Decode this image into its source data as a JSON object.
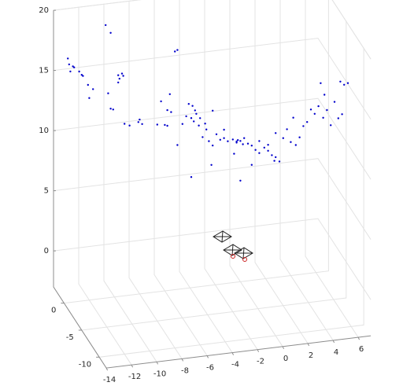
{
  "chart_data": {
    "type": "scatter3d",
    "color": "#0000cc",
    "grid": true,
    "xlim": [
      -14,
      7
    ],
    "ylim": [
      -12,
      3
    ],
    "zlim": [
      -3,
      20
    ],
    "xticks": [
      -14,
      -12,
      -10,
      -8,
      -6,
      -4,
      -2,
      0,
      2,
      4,
      6
    ],
    "yticks": [
      -10,
      -5,
      0
    ],
    "zticks": [
      0,
      5,
      10,
      15,
      20
    ],
    "x": [
      -13.7,
      -13.6,
      -13.3,
      -13.2,
      -13.5,
      -12.8,
      -12.6,
      -12.5,
      -12.1,
      -11.7,
      -12.0,
      -10.7,
      -10.3,
      -9.7,
      -9.4,
      -9.3,
      -9.7,
      -9.6,
      -10.3,
      -10.5,
      -10.1,
      -9.2,
      -8.8,
      -8.0,
      -7.8,
      -8.1,
      -5.2,
      -5.0,
      -6.3,
      -5.6,
      -5.8,
      -5.5,
      -6.0,
      -5.8,
      -5.0,
      -4.1,
      -3.8,
      -3.6,
      -3.5,
      -3.9,
      -3.7,
      -3.3,
      -3.2,
      -2.8,
      -2.7,
      -3.0,
      -2.5,
      -2.2,
      -2.3,
      -3.9,
      -1.9,
      -1.6,
      -1.3,
      -1.0,
      -0.6,
      -0.3,
      0.0,
      0.3,
      -0.5,
      0.9,
      1.2,
      1.5,
      1.9,
      2.2,
      2.5,
      2.8,
      3.1,
      0.9,
      1.5,
      2.8,
      3.4,
      3.7,
      4.0,
      4.4,
      4.7,
      5.0,
      4.2,
      5.3,
      5.6,
      5.9,
      6.2,
      4.9,
      5.0,
      4.7,
      5.2,
      5.5,
      5.8,
      6.1,
      6.4,
      5.7,
      6.0,
      6.3,
      -0.3,
      -0.2,
      0.2,
      0.6,
      2.2,
      0.0,
      2.7,
      -4.6,
      -4.3,
      -6.6,
      -2.2,
      -1.3
    ],
    "y": [
      0,
      0,
      0,
      0,
      0,
      0,
      0,
      0,
      0,
      0,
      0,
      0,
      0,
      0,
      0,
      0,
      0,
      0,
      0,
      0,
      0,
      0,
      0,
      0,
      0,
      0,
      0,
      0,
      0,
      0,
      0,
      0,
      0,
      0,
      0,
      0,
      0,
      0,
      0,
      0,
      0,
      0,
      0,
      0,
      0,
      0,
      0,
      0,
      0,
      0,
      0,
      0,
      0,
      0,
      0,
      0,
      0,
      0,
      0,
      0,
      0,
      0,
      0,
      0,
      0,
      0,
      0,
      0,
      0,
      0,
      0,
      0,
      0,
      0,
      0,
      0,
      0,
      0,
      0,
      0,
      0,
      -6,
      -6,
      -6,
      -6,
      -6,
      -6,
      -6,
      -6,
      -8,
      -8,
      -8,
      0,
      0,
      0,
      0,
      0,
      0,
      0,
      0,
      0,
      0,
      0,
      0
    ],
    "z": [
      17.3,
      16.8,
      16.6,
      16.5,
      16.2,
      16.1,
      15.8,
      15.7,
      14.9,
      14.5,
      13.8,
      19.7,
      19.0,
      15.4,
      15.5,
      15.3,
      14.8,
      15.1,
      12.7,
      14.0,
      12.6,
      11.3,
      11.1,
      11.5,
      11.1,
      11.3,
      16.8,
      16.9,
      12.8,
      13.3,
      12.0,
      11.8,
      10.8,
      10.7,
      9.0,
      12.3,
      12.1,
      11.7,
      11.4,
      11.1,
      10.8,
      10.4,
      11.0,
      10.5,
      10.0,
      9.4,
      9.0,
      8.6,
      7.0,
      6.2,
      9.5,
      9.0,
      9.1,
      8.8,
      8.9,
      8.6,
      8.7,
      8.9,
      7.7,
      8.2,
      7.8,
      7.5,
      7.9,
      7.6,
      7.2,
      7.0,
      6.6,
      6.6,
      8.5,
      9.0,
      8.5,
      9.2,
      8.1,
      7.8,
      8.4,
      9.3,
      10.1,
      9.6,
      10.6,
      10.2,
      10.8,
      12.7,
      14.6,
      15.6,
      13.3,
      12.0,
      13.9,
      12.5,
      12.8,
      16.5,
      16.2,
      16.3,
      8.7,
      8.8,
      8.4,
      8.4,
      8.1,
      5.4,
      6.7,
      10.7,
      11.3,
      10.9,
      11.5,
      9.8
    ]
  }
}
